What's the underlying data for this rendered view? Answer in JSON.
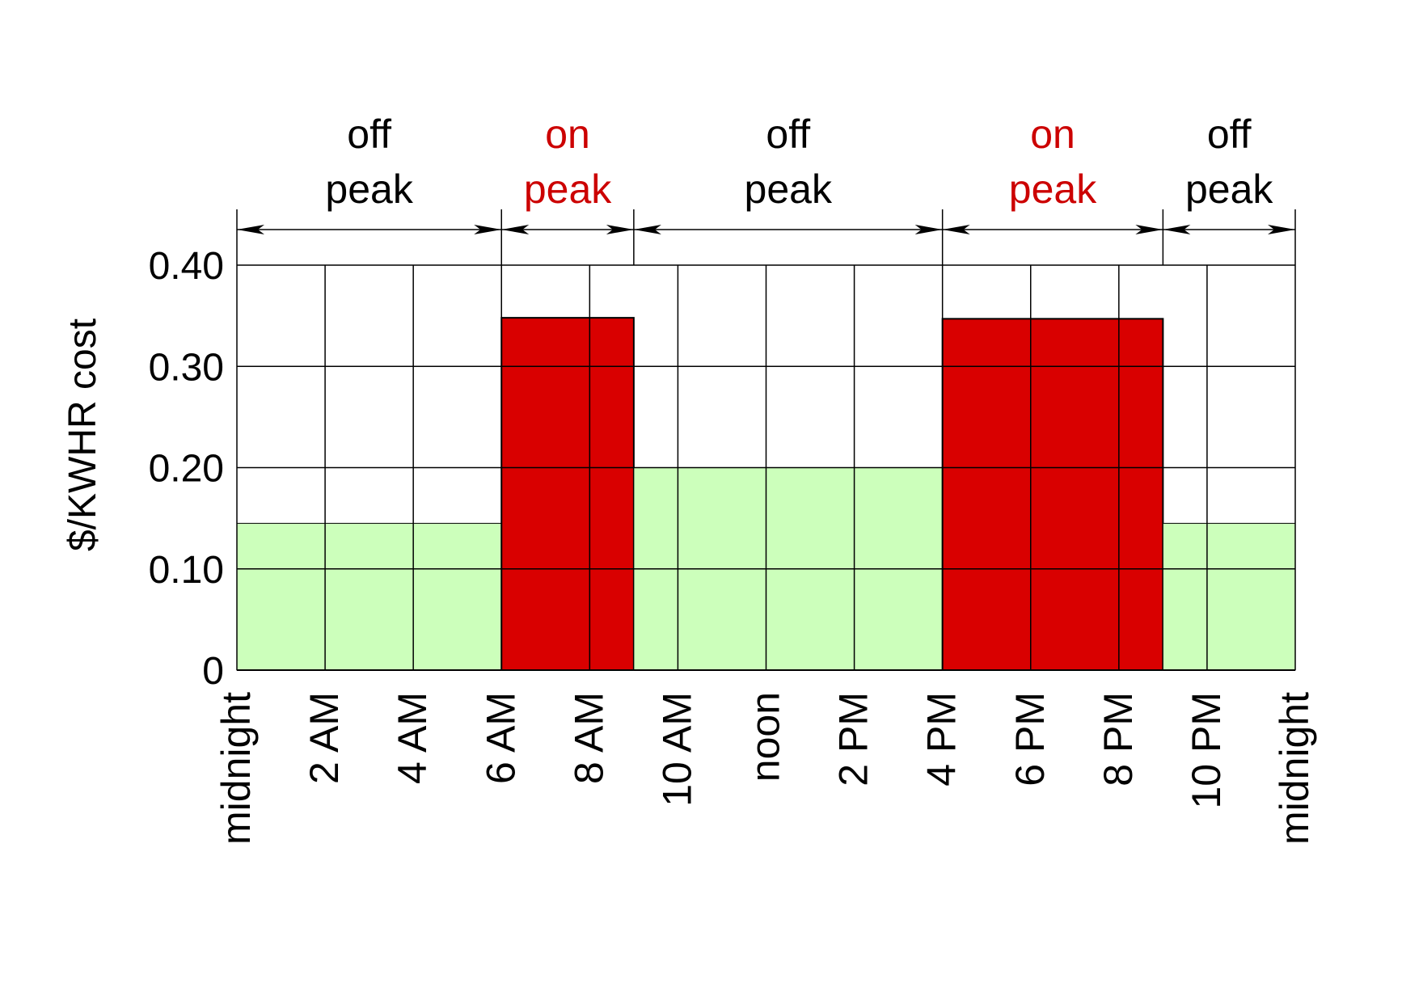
{
  "chart_data": {
    "type": "bar",
    "ylabel": "$/KWHR cost",
    "xlabel": "",
    "title": "",
    "ylim": [
      0,
      0.4
    ],
    "yticks": [
      "0",
      "0.10",
      "0.20",
      "0.30",
      "0.40"
    ],
    "ytick_values": [
      0,
      0.1,
      0.2,
      0.3,
      0.4
    ],
    "x_range_hours": [
      0,
      24
    ],
    "xticks": [
      "midnight",
      "2 AM",
      "4 AM",
      "6 AM",
      "8 AM",
      "10 AM",
      "noon",
      "2 PM",
      "4 PM",
      "6 PM",
      "8 PM",
      "10 PM",
      "midnight"
    ],
    "xtick_hours": [
      0,
      2,
      4,
      6,
      8,
      10,
      12,
      14,
      16,
      18,
      20,
      22,
      24
    ],
    "grid": true,
    "segments": [
      {
        "start_hour": 0,
        "end_hour": 6,
        "value": 0.145,
        "kind": "off"
      },
      {
        "start_hour": 6,
        "end_hour": 9,
        "value": 0.348,
        "kind": "on"
      },
      {
        "start_hour": 9,
        "end_hour": 16,
        "value": 0.2,
        "kind": "off"
      },
      {
        "start_hour": 16,
        "end_hour": 21,
        "value": 0.347,
        "kind": "on"
      },
      {
        "start_hour": 21,
        "end_hour": 24,
        "value": 0.145,
        "kind": "off"
      }
    ],
    "periods": [
      {
        "start_hour": 0,
        "end_hour": 6,
        "line1": "off",
        "line2": "peak",
        "kind": "off"
      },
      {
        "start_hour": 6,
        "end_hour": 9,
        "line1": "on",
        "line2": "peak",
        "kind": "on"
      },
      {
        "start_hour": 9,
        "end_hour": 16,
        "line1": "off",
        "line2": "peak",
        "kind": "off"
      },
      {
        "start_hour": 16,
        "end_hour": 21,
        "line1": "on",
        "line2": "peak",
        "kind": "on"
      },
      {
        "start_hour": 21,
        "end_hour": 24,
        "line1": "off",
        "line2": "peak",
        "kind": "off"
      }
    ],
    "colors": {
      "on_peak_fill": "#d90000",
      "off_peak_fill": "#ccffbb",
      "on_peak_text": "#cc0000",
      "off_peak_text": "#000000",
      "grid": "#000000"
    }
  }
}
